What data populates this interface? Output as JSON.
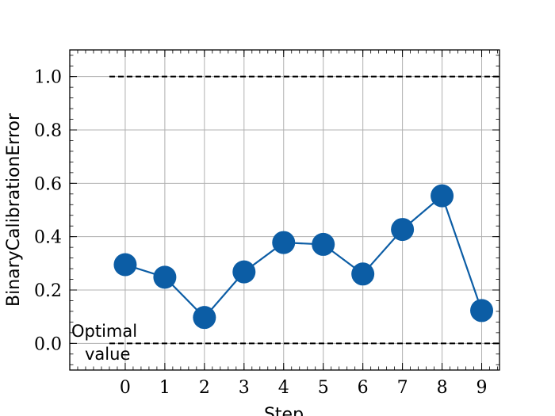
{
  "chart_data": {
    "type": "line",
    "xlabel": "Step",
    "ylabel": "BinaryCalibrationError",
    "x": [
      0,
      1,
      2,
      3,
      4,
      5,
      6,
      7,
      8,
      9
    ],
    "series": [
      {
        "values": [
          0.295,
          0.248,
          0.097,
          0.268,
          0.378,
          0.371,
          0.26,
          0.427,
          0.553,
          0.123
        ]
      }
    ],
    "xlim": [
      -1.4,
      9.45
    ],
    "ylim": [
      -0.1,
      1.1
    ],
    "xticks": [
      "0",
      "1",
      "2",
      "3",
      "4",
      "5",
      "6",
      "7",
      "8",
      "9"
    ],
    "yticks": [
      "0.0",
      "0.2",
      "0.4",
      "0.6",
      "0.8",
      "1.0"
    ],
    "reference_lines": [
      {
        "y": 1.0,
        "x_from": -0.4,
        "style": "dashed"
      },
      {
        "y": 0.0,
        "x_from": -0.4,
        "style": "dashed"
      }
    ],
    "annotation": {
      "line1": "Optimal",
      "line2": "value"
    },
    "grid": true,
    "colors": {
      "series": "#0c5da5",
      "grid": "#b0b0b0",
      "reference": "#000000"
    }
  }
}
